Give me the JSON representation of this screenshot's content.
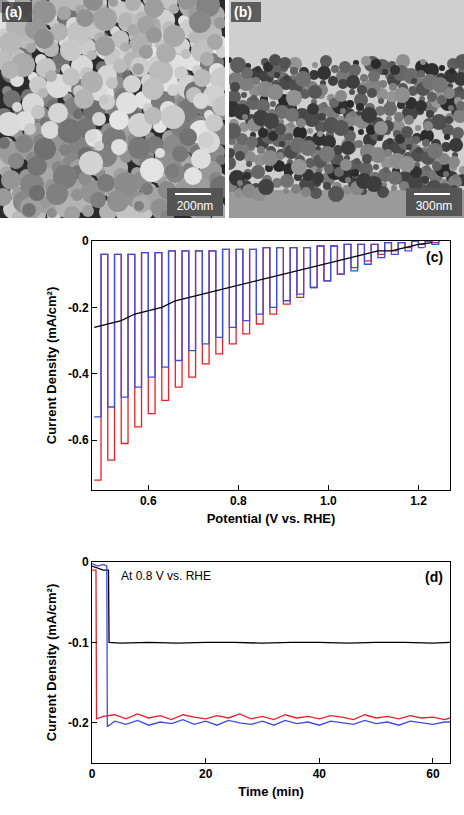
{
  "images": [
    {
      "label": "(a)",
      "scale_bar": "200nm"
    },
    {
      "label": "(b)",
      "scale_bar": "300nm"
    }
  ],
  "chart_data": [
    {
      "type": "line",
      "title": "(c)",
      "x_label": "Potential (V vs. RHE)",
      "y_label": "Current Density (mA/cm²)",
      "x": [
        0.48,
        0.495,
        0.51,
        0.525,
        0.54,
        0.555,
        0.57,
        0.585,
        0.6,
        0.615,
        0.63,
        0.645,
        0.66,
        0.675,
        0.69,
        0.705,
        0.72,
        0.735,
        0.75,
        0.765,
        0.78,
        0.795,
        0.81,
        0.825,
        0.84,
        0.855,
        0.87,
        0.885,
        0.9,
        0.915,
        0.93,
        0.945,
        0.96,
        0.975,
        0.99,
        1.005,
        1.02,
        1.035,
        1.05,
        1.065,
        1.08,
        1.095,
        1.11,
        1.125,
        1.14,
        1.155,
        1.17,
        1.185,
        1.2,
        1.215,
        1.23,
        1.245
      ],
      "series": [
        {
          "color": "#e8202a",
          "line_style": "steps",
          "values": [
            -0.72,
            -0.04,
            -0.66,
            -0.04,
            -0.61,
            -0.04,
            -0.56,
            -0.035,
            -0.52,
            -0.035,
            -0.48,
            -0.03,
            -0.44,
            -0.03,
            -0.41,
            -0.03,
            -0.37,
            -0.03,
            -0.34,
            -0.025,
            -0.31,
            -0.025,
            -0.28,
            -0.025,
            -0.25,
            -0.02,
            -0.22,
            -0.02,
            -0.19,
            -0.02,
            -0.17,
            -0.02,
            -0.14,
            -0.015,
            -0.12,
            -0.015,
            -0.1,
            -0.01,
            -0.08,
            -0.01,
            -0.06,
            -0.01,
            -0.04,
            -0.005,
            -0.03,
            -0.005,
            -0.02,
            0,
            -0.01,
            0,
            -0.005,
            0
          ]
        },
        {
          "color": "#3a4fe0",
          "line_style": "steps",
          "values": [
            -0.53,
            -0.04,
            -0.5,
            -0.04,
            -0.47,
            -0.04,
            -0.44,
            -0.035,
            -0.41,
            -0.035,
            -0.38,
            -0.03,
            -0.36,
            -0.03,
            -0.33,
            -0.03,
            -0.31,
            -0.03,
            -0.29,
            -0.025,
            -0.26,
            -0.025,
            -0.24,
            -0.025,
            -0.22,
            -0.02,
            -0.2,
            -0.02,
            -0.18,
            -0.02,
            -0.16,
            -0.02,
            -0.14,
            -0.015,
            -0.12,
            -0.015,
            -0.1,
            -0.01,
            -0.09,
            -0.01,
            -0.07,
            -0.01,
            -0.05,
            -0.005,
            -0.04,
            -0.005,
            -0.03,
            0,
            -0.02,
            0,
            -0.01,
            0
          ]
        },
        {
          "color": "#000000",
          "line_style": "solid",
          "x": [
            0.48,
            0.51,
            0.54,
            0.57,
            0.6,
            0.63,
            0.66,
            0.69,
            0.72,
            0.75,
            0.78,
            0.81,
            0.84,
            0.87,
            0.9,
            0.93,
            0.96,
            0.99,
            1.02,
            1.05,
            1.08,
            1.11,
            1.14,
            1.17,
            1.2,
            1.23
          ],
          "values": [
            -0.26,
            -0.25,
            -0.24,
            -0.22,
            -0.21,
            -0.2,
            -0.18,
            -0.17,
            -0.16,
            -0.15,
            -0.14,
            -0.13,
            -0.12,
            -0.11,
            -0.1,
            -0.09,
            -0.08,
            -0.07,
            -0.06,
            -0.05,
            -0.04,
            -0.03,
            -0.03,
            -0.02,
            -0.01,
            -0.005
          ]
        }
      ],
      "xlim": [
        0.475,
        1.27
      ],
      "xticks": [
        0.6,
        0.8,
        {
          "value": 1,
          "label": "1.0"
        },
        1.2
      ],
      "ylim": [
        -0.75,
        0
      ],
      "yticks": [
        0,
        -0.2,
        -0.4,
        -0.6
      ],
      "grid": false
    },
    {
      "type": "line",
      "title": "(d)",
      "x_label": "Time (min)",
      "y_label": "Current Density (mA/cm²)",
      "annotations": [
        "At 0.8 V vs. RHE"
      ],
      "series": [
        {
          "color": "#000000",
          "line_style": "solid",
          "x": [
            0,
            1,
            2,
            2.9,
            3,
            5,
            10,
            15,
            20,
            25,
            30,
            35,
            40,
            45,
            50,
            55,
            60,
            63
          ],
          "values": [
            -0.005,
            -0.008,
            -0.01,
            -0.01,
            -0.1,
            -0.101,
            -0.1,
            -0.101,
            -0.1,
            -0.1,
            -0.101,
            -0.1,
            -0.1,
            -0.101,
            -0.1,
            -0.1,
            -0.101,
            -0.1
          ]
        },
        {
          "color": "#e8202a",
          "line_style": "solid",
          "x": [
            0,
            0.7,
            0.8,
            2,
            4,
            6,
            8,
            10,
            12,
            14,
            16,
            18,
            20,
            22,
            24,
            26,
            28,
            30,
            32,
            34,
            36,
            38,
            40,
            42,
            44,
            46,
            48,
            50,
            52,
            54,
            56,
            58,
            60,
            62,
            63
          ],
          "values": [
            -0.01,
            -0.01,
            -0.195,
            -0.192,
            -0.19,
            -0.195,
            -0.189,
            -0.194,
            -0.191,
            -0.196,
            -0.19,
            -0.193,
            -0.195,
            -0.191,
            -0.194,
            -0.189,
            -0.195,
            -0.192,
            -0.196,
            -0.19,
            -0.194,
            -0.192,
            -0.195,
            -0.191,
            -0.193,
            -0.196,
            -0.19,
            -0.194,
            -0.192,
            -0.195,
            -0.191,
            -0.194,
            -0.193,
            -0.196,
            -0.194
          ]
        },
        {
          "color": "#3a4fe0",
          "line_style": "solid",
          "x": [
            0,
            1,
            2,
            2.6,
            2.7,
            4,
            6,
            8,
            10,
            12,
            14,
            16,
            18,
            20,
            22,
            24,
            26,
            28,
            30,
            32,
            34,
            36,
            38,
            40,
            42,
            44,
            46,
            48,
            50,
            52,
            54,
            56,
            58,
            60,
            62,
            63
          ],
          "values": [
            -0.002,
            -0.005,
            -0.003,
            -0.005,
            -0.205,
            -0.198,
            -0.202,
            -0.197,
            -0.203,
            -0.199,
            -0.201,
            -0.196,
            -0.202,
            -0.198,
            -0.203,
            -0.197,
            -0.2,
            -0.202,
            -0.198,
            -0.203,
            -0.197,
            -0.201,
            -0.199,
            -0.203,
            -0.198,
            -0.2,
            -0.202,
            -0.197,
            -0.201,
            -0.199,
            -0.203,
            -0.198,
            -0.2,
            -0.202,
            -0.199,
            -0.199
          ]
        }
      ],
      "xlim": [
        0,
        63
      ],
      "xticks": [
        0,
        20,
        40,
        60
      ],
      "ylim": [
        -0.25,
        0
      ],
      "yticks": [
        0,
        -0.1,
        -0.2
      ],
      "grid": false
    }
  ]
}
